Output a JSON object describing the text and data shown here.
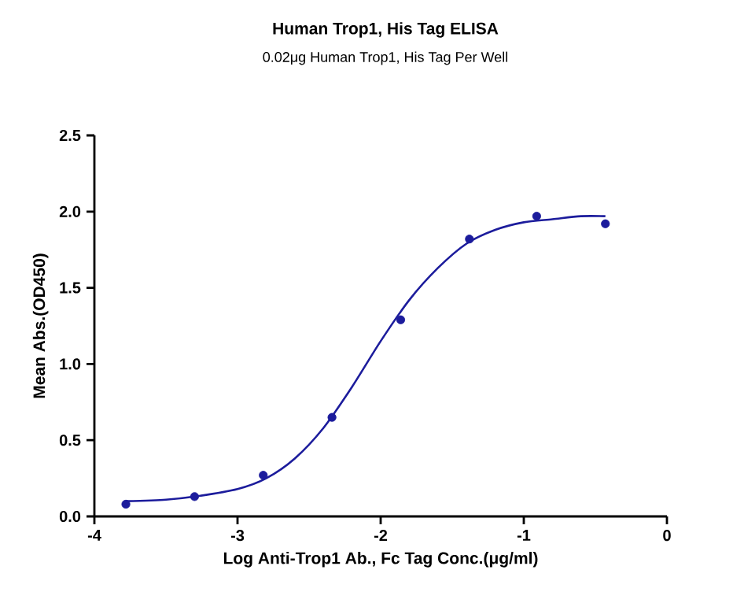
{
  "chart_data": {
    "type": "scatter",
    "title": "Human Trop1, His Tag ELISA",
    "subtitle": "0.02μg Human Trop1, His Tag Per Well",
    "xlabel": "Log  Anti-Trop1 Ab., Fc Tag Conc.(μg/ml)",
    "ylabel": "Mean Abs.(OD450)",
    "xlim": [
      -4,
      0
    ],
    "ylim": [
      0,
      2.5
    ],
    "xticks": [
      -4,
      -3,
      -2,
      -1,
      0
    ],
    "yticks": [
      {
        "value": 0,
        "label": "0.0"
      },
      {
        "value": 0.5,
        "label": "0.5"
      },
      {
        "value": 1,
        "label": "1.0"
      },
      {
        "value": 1.5,
        "label": "1.5"
      },
      {
        "value": 2,
        "label": "2.0"
      },
      {
        "value": 2.5,
        "label": "2.5"
      }
    ],
    "grid": false,
    "series": [
      {
        "type": "line",
        "marker": "none",
        "color": "#1c1c9c",
        "x": [
          -3.78,
          -3.5,
          -3.3,
          -3.0,
          -2.8,
          -2.6,
          -2.4,
          -2.2,
          -2.0,
          -1.8,
          -1.6,
          -1.4,
          -1.2,
          -1.0,
          -0.8,
          -0.6,
          -0.43
        ],
        "values": [
          0.1,
          0.11,
          0.13,
          0.18,
          0.25,
          0.38,
          0.58,
          0.85,
          1.15,
          1.42,
          1.63,
          1.79,
          1.88,
          1.93,
          1.95,
          1.97,
          1.97
        ]
      },
      {
        "marker": "circle",
        "color": "#1c1c9c",
        "x": [
          -3.78,
          -3.3,
          -2.82,
          -2.34,
          -1.86,
          -1.38,
          -0.91,
          -0.43
        ],
        "values": [
          0.08,
          0.13,
          0.27,
          0.65,
          1.29,
          1.82,
          1.97,
          1.92
        ]
      }
    ]
  }
}
